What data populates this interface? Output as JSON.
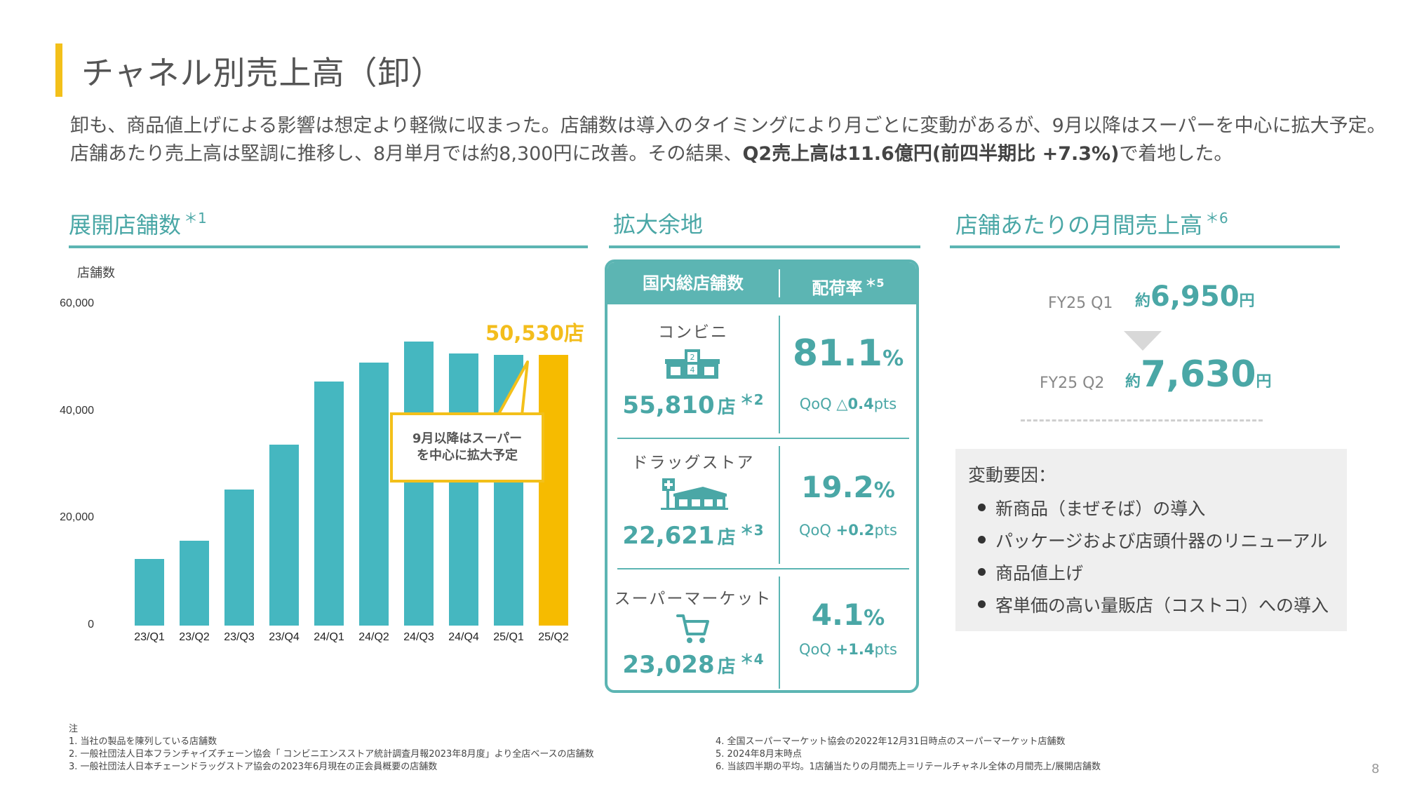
{
  "header": {
    "title": "チャネル別売上高（卸）"
  },
  "lead": {
    "part1": "卸も、商品値上げによる影響は想定より軽微に収まった。店舗数は導入のタイミングにより月ごとに変動があるが、9月以降はスーパーを中心に拡大予定。店舗あたり売上高は堅調に推移し、8月単月では約8,300円に改善。その結果、",
    "bold": "Q2売上高は11.6億円(前四半期比 +7.3%)",
    "part2": "で着地した。"
  },
  "sections": {
    "stores_title": "展開店舗数",
    "stores_note": "＊1",
    "capacity_title": "拡大余地",
    "monthly_title": "店舗あたりの月間売上高",
    "monthly_note": "＊6"
  },
  "chart_data": {
    "type": "bar",
    "ylabel": "店舗数",
    "ylim": [
      0,
      60000
    ],
    "yticks": [
      "60,000",
      "40,000",
      "20,000",
      "0"
    ],
    "categories": [
      "23/Q1",
      "23/Q2",
      "23/Q3",
      "23/Q4",
      "24/Q1",
      "24/Q2",
      "24/Q3",
      "24/Q4",
      "25/Q1",
      "25/Q2"
    ],
    "values": [
      12400,
      15800,
      25400,
      33800,
      45600,
      49100,
      53000,
      50800,
      50600,
      50530
    ],
    "highlight_index": 9,
    "highlight_label": "50,530店",
    "callout": [
      "9月以降はスーパー",
      "を中心に拡大予定"
    ],
    "colors": {
      "bar": "#45b7c0",
      "highlight": "#f6bb00"
    }
  },
  "capacity": {
    "col1": "国内総店舗数",
    "col2": "配荷率",
    "col2_note": "＊5",
    "rows": [
      {
        "label": "コンビニ",
        "icon": "convenience-store-icon",
        "count": "55,810",
        "unit": "店",
        "note": "＊2",
        "rate": "81.1",
        "pct": "%",
        "qoq_label": "QoQ",
        "qoq_value": "△0.4",
        "qoq_unit": "pts"
      },
      {
        "label": "ドラッグストア",
        "icon": "drugstore-icon",
        "count": "22,621",
        "unit": "店",
        "note": "＊3",
        "rate": "19.2",
        "pct": "%",
        "qoq_label": "QoQ",
        "qoq_value": "+0.2",
        "qoq_unit": "pts"
      },
      {
        "label": "スーパーマーケット",
        "icon": "shopping-cart-icon",
        "count": "23,028",
        "unit": "店",
        "note": "＊4",
        "rate": "4.1",
        "pct": "%",
        "qoq_label": "QoQ",
        "qoq_value": "+1.4",
        "qoq_unit": "pts"
      }
    ]
  },
  "monthly": {
    "q1_label": "FY25 Q1",
    "q1_prefix": "約",
    "q1_value": "6,950",
    "q1_suffix": "円",
    "q2_label": "FY25 Q2",
    "q2_prefix": "約",
    "q2_value": "7,630",
    "q2_suffix": "円",
    "factors_title": "変動要因：",
    "factors": [
      "新商品（まぜそば）の導入",
      "パッケージおよび店頭什器のリニューアル",
      "商品値上げ",
      "客単価の高い量販店（コストコ）への導入"
    ]
  },
  "footnotes": {
    "heading": "注",
    "left": [
      "1.  当社の製品を陳列している店舗数",
      "2.  一般社団法人日本フランチャイズチェーン協会「 コンビニエンスストア統計調査月報2023年8月度」より全店ベースの店舗数",
      "3.  一般社団法人日本チェーンドラッグストア協会の2023年6月現在の正会員概要の店舗数"
    ],
    "right": [
      "4.  全国スーパーマーケット協会の2022年12月31日時点のスーパーマーケット店舗数",
      "5.  2024年8月末時点",
      "6.  当該四半期の平均。1店舗当たりの月間売上＝リテールチャネル全体の月間売上/展開店舗数"
    ]
  },
  "page_number": "8"
}
